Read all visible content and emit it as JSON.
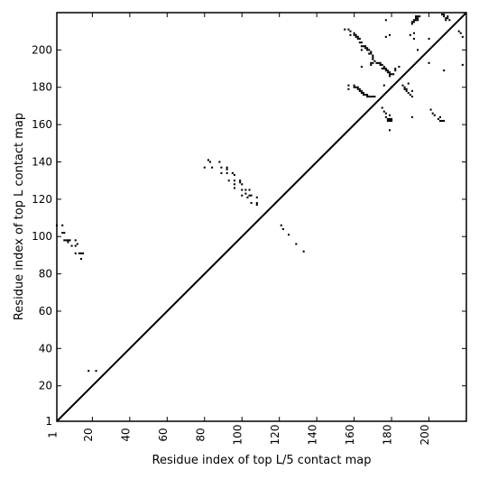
{
  "chart_data": {
    "type": "scatter",
    "title": "",
    "xlabel": "Residue index of top L/5 contact map",
    "ylabel": "Residue index of top L contact map",
    "xlim": [
      1,
      220
    ],
    "ylim": [
      1,
      220
    ],
    "xticks": [
      1,
      20,
      40,
      60,
      80,
      100,
      120,
      140,
      160,
      180,
      200
    ],
    "yticks": [
      1,
      20,
      40,
      60,
      80,
      100,
      120,
      140,
      160,
      180,
      200
    ],
    "xtick_rotation": -90,
    "grid": false,
    "marker": "square",
    "colors": {
      "points": "#000000",
      "diagonal": "#000000",
      "axes": "#000000",
      "background": "#ffffff"
    },
    "diagonal": {
      "from": [
        1,
        1
      ],
      "to": [
        220,
        220
      ]
    },
    "upper_triangle_points": [
      [
        80,
        137
      ],
      [
        82,
        141
      ],
      [
        83,
        140
      ],
      [
        84,
        137
      ],
      [
        88,
        140
      ],
      [
        89,
        137
      ],
      [
        89,
        134
      ],
      [
        92,
        137
      ],
      [
        92,
        136
      ],
      [
        92,
        134
      ],
      [
        93,
        130
      ],
      [
        95,
        134
      ],
      [
        96,
        133
      ],
      [
        96,
        130
      ],
      [
        96,
        128
      ],
      [
        96,
        126
      ],
      [
        99,
        130
      ],
      [
        99,
        129
      ],
      [
        100,
        128
      ],
      [
        100,
        125
      ],
      [
        100,
        122
      ],
      [
        102,
        125
      ],
      [
        102,
        123
      ],
      [
        103,
        121
      ],
      [
        104,
        125
      ],
      [
        104,
        122
      ],
      [
        105,
        122
      ],
      [
        105,
        118
      ],
      [
        108,
        121
      ],
      [
        108,
        118
      ],
      [
        108,
        117
      ],
      [
        121,
        106
      ],
      [
        122,
        104
      ],
      [
        125,
        101
      ],
      [
        129,
        96
      ],
      [
        133,
        92
      ],
      [
        155,
        211
      ],
      [
        157,
        211
      ],
      [
        158,
        210
      ],
      [
        158,
        208
      ],
      [
        160,
        209
      ],
      [
        160,
        208
      ],
      [
        161,
        208
      ],
      [
        161,
        207
      ],
      [
        162,
        207
      ],
      [
        162,
        206
      ],
      [
        163,
        206
      ],
      [
        163,
        204
      ],
      [
        164,
        204
      ],
      [
        164,
        202
      ],
      [
        164,
        200
      ],
      [
        165,
        202
      ],
      [
        166,
        202
      ],
      [
        166,
        201
      ],
      [
        167,
        201
      ],
      [
        167,
        200
      ],
      [
        168,
        200
      ],
      [
        168,
        198
      ],
      [
        169,
        199
      ],
      [
        169,
        198
      ],
      [
        170,
        197
      ],
      [
        170,
        196
      ],
      [
        170,
        195
      ],
      [
        170,
        193
      ],
      [
        169,
        193
      ],
      [
        171,
        194
      ],
      [
        172,
        193
      ],
      [
        173,
        193
      ],
      [
        174,
        193
      ],
      [
        174,
        192
      ],
      [
        175,
        192
      ],
      [
        175,
        190
      ],
      [
        176,
        191
      ],
      [
        176,
        190
      ],
      [
        177,
        190
      ],
      [
        177,
        189
      ],
      [
        178,
        189
      ],
      [
        178,
        188
      ],
      [
        179,
        188
      ],
      [
        179,
        187
      ],
      [
        179,
        186
      ],
      [
        180,
        187
      ],
      [
        181,
        187
      ],
      [
        176,
        181
      ],
      [
        180,
        180
      ],
      [
        164,
        191
      ],
      [
        169,
        192
      ],
      [
        157,
        181
      ],
      [
        157,
        179
      ],
      [
        160,
        181
      ],
      [
        160,
        180
      ],
      [
        161,
        180
      ],
      [
        162,
        180
      ],
      [
        162,
        179
      ],
      [
        163,
        179
      ],
      [
        163,
        178
      ],
      [
        164,
        178
      ],
      [
        164,
        177
      ],
      [
        165,
        177
      ],
      [
        165,
        176
      ],
      [
        166,
        176
      ],
      [
        167,
        176
      ],
      [
        167,
        175
      ],
      [
        168,
        175
      ],
      [
        169,
        175
      ],
      [
        170,
        175
      ],
      [
        171,
        175
      ],
      [
        175,
        169
      ],
      [
        176,
        167
      ],
      [
        177,
        166
      ],
      [
        177,
        164
      ],
      [
        178,
        163
      ],
      [
        178,
        162
      ],
      [
        179,
        165
      ],
      [
        179,
        163
      ],
      [
        179,
        162
      ],
      [
        180,
        163
      ],
      [
        180,
        162
      ],
      [
        179,
        157
      ],
      [
        182,
        190
      ],
      [
        182,
        189
      ],
      [
        184,
        191
      ],
      [
        186,
        181
      ],
      [
        187,
        180
      ],
      [
        187,
        179
      ],
      [
        188,
        178
      ],
      [
        189,
        177
      ],
      [
        190,
        176
      ],
      [
        191,
        178
      ],
      [
        191,
        175
      ],
      [
        191,
        164
      ],
      [
        189,
        182
      ],
      [
        188,
        179
      ],
      [
        177,
        216
      ],
      [
        177,
        207
      ],
      [
        179,
        208
      ],
      [
        190,
        208
      ],
      [
        191,
        215
      ],
      [
        191,
        214
      ],
      [
        192,
        216
      ],
      [
        192,
        215
      ],
      [
        192,
        206
      ],
      [
        192,
        209
      ],
      [
        193,
        218
      ],
      [
        193,
        217
      ],
      [
        193,
        216
      ],
      [
        194,
        218
      ],
      [
        194,
        217
      ],
      [
        194,
        216
      ],
      [
        194,
        200
      ],
      [
        195,
        218
      ],
      [
        200,
        206
      ],
      [
        200,
        193
      ],
      [
        201,
        168
      ],
      [
        202,
        166
      ],
      [
        203,
        165
      ],
      [
        205,
        163
      ],
      [
        206,
        164
      ],
      [
        206,
        162
      ],
      [
        207,
        162
      ],
      [
        208,
        162
      ],
      [
        208,
        189
      ],
      [
        207,
        219
      ],
      [
        208,
        219
      ],
      [
        208,
        218
      ],
      [
        209,
        217
      ],
      [
        209,
        216
      ],
      [
        210,
        217
      ],
      [
        210,
        218
      ],
      [
        211,
        216
      ],
      [
        216,
        210
      ],
      [
        217,
        209
      ],
      [
        218,
        207
      ],
      [
        218,
        192
      ]
    ],
    "lower_triangle_points": [
      [
        1,
        106
      ],
      [
        4,
        106
      ],
      [
        4,
        102
      ],
      [
        5,
        102
      ],
      [
        5,
        98
      ],
      [
        6,
        98
      ],
      [
        7,
        98
      ],
      [
        7,
        97
      ],
      [
        8,
        98
      ],
      [
        9,
        95
      ],
      [
        11,
        95
      ],
      [
        11,
        98
      ],
      [
        12,
        96
      ],
      [
        11,
        91
      ],
      [
        13,
        91
      ],
      [
        14,
        91
      ],
      [
        15,
        91
      ],
      [
        14,
        88
      ],
      [
        18,
        28
      ],
      [
        22,
        28
      ]
    ]
  }
}
